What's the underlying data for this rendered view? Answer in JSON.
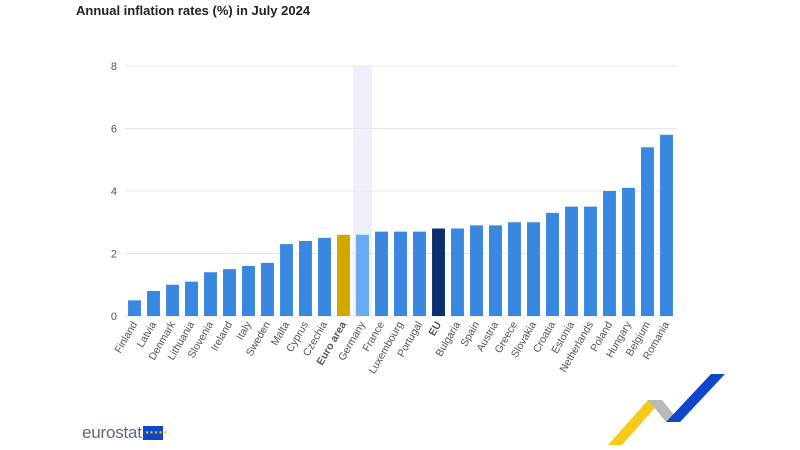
{
  "title": "Annual inflation rates (%) in July 2024",
  "logo": {
    "text": "eurostat",
    "flag_icon": "eu-flag-icon"
  },
  "colors": {
    "bar": "#3a87e0",
    "bar_euro_area": "#d2a700",
    "bar_eu": "#0b2f6e",
    "bar_germany": "#69aaf2",
    "highlight_band": "#eef1fb",
    "grid": "#e6e6e6",
    "axis_text": "#555555"
  },
  "chart_data": {
    "type": "bar",
    "title": "Annual inflation rates (%) in July 2024",
    "xlabel": "",
    "ylabel": "",
    "ylim": [
      0,
      8
    ],
    "yticks": [
      0,
      2,
      4,
      6,
      8
    ],
    "grid": true,
    "categories": [
      "Finland",
      "Latvia",
      "Denmark",
      "Lithuania",
      "Slovenia",
      "Ireland",
      "Italy",
      "Sweden",
      "Malta",
      "Cyprus",
      "Czechia",
      "Euro area",
      "Germany",
      "France",
      "Luxembourg",
      "Portugal",
      "EU",
      "Bulgaria",
      "Spain",
      "Austria",
      "Greece",
      "Slovakia",
      "Croatia",
      "Estonia",
      "Netherlands",
      "Poland",
      "Hungary",
      "Belgium",
      "Romania"
    ],
    "values": [
      0.5,
      0.8,
      1.0,
      1.1,
      1.4,
      1.5,
      1.6,
      1.7,
      2.3,
      2.4,
      2.5,
      2.6,
      2.6,
      2.7,
      2.7,
      2.7,
      2.8,
      2.8,
      2.9,
      2.9,
      3.0,
      3.0,
      3.3,
      3.5,
      3.5,
      4.0,
      4.1,
      5.4,
      5.8
    ],
    "bold_categories": [
      "Euro area",
      "EU"
    ],
    "highlighted_category": "Germany"
  }
}
